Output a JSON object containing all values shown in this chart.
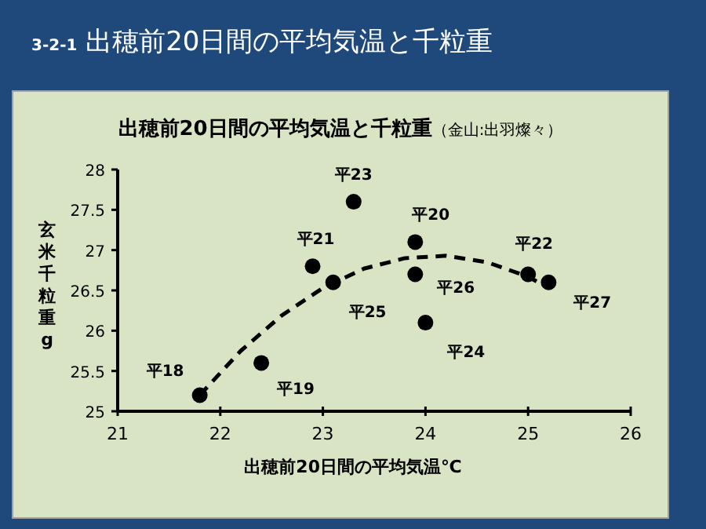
{
  "chart_data": {
    "type": "scatter",
    "title": "**3-2-1**  出穂前20日間の平均気温と千粒重",
    "subtitle": "**出穂前20日間の平均気温と千粒重**（金山:出羽燦々）",
    "xlabel": "出穂前20日間の平均気温℃",
    "ylabel": "玄米千粒重g",
    "xlim": [
      21,
      26
    ],
    "xticks": [
      21,
      22,
      23,
      24,
      25,
      26
    ],
    "ylim": [
      25,
      28
    ],
    "yticks": [
      25,
      25.5,
      26,
      26.5,
      27,
      27.5,
      28
    ],
    "grid": false,
    "series": [
      {
        "type": "scatter",
        "color": "#000000",
        "marker": "circle",
        "x": [
          21.8,
          22.4,
          22.9,
          23.1,
          23.3,
          23.9,
          23.9,
          24.0,
          25.0,
          25.2
        ],
        "values": [
          25.2,
          25.6,
          26.8,
          26.6,
          27.6,
          27.1,
          26.7,
          26.1,
          26.7,
          26.6
        ],
        "value_labels": [
          "平18",
          "平19",
          "平21",
          "平25",
          "平23",
          "平20",
          "平26",
          "平24",
          "平22",
          "平27"
        ]
      },
      {
        "type": "line",
        "color": "#000000",
        "marker": "none",
        "line_style": "dashed",
        "x": [
          21.8,
          22.2,
          22.6,
          23.0,
          23.4,
          23.8,
          24.2,
          24.6,
          25.0,
          25.2
        ],
        "values": [
          25.2,
          25.75,
          26.19,
          26.53,
          26.77,
          26.9,
          26.93,
          26.85,
          26.67,
          26.53
        ]
      }
    ]
  }
}
